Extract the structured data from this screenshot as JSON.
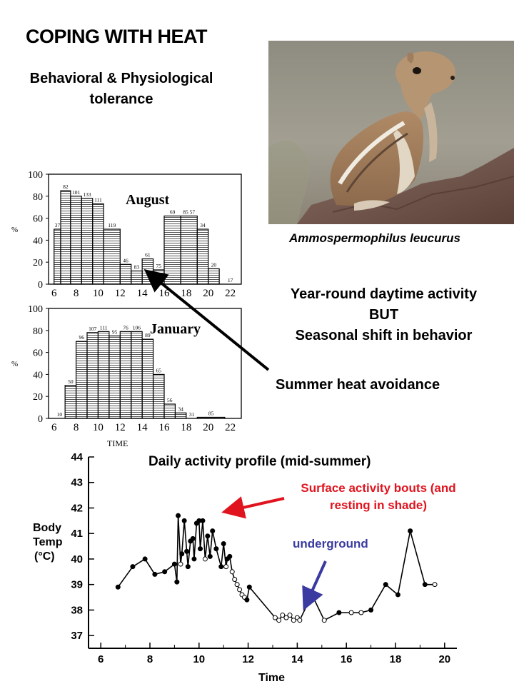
{
  "title": "COPING WITH HEAT",
  "subtitle": "Behavioral & Physiological tolerance",
  "species": "Ammospermophilus leucurus",
  "notes": {
    "line1": "Year-round daytime activity",
    "line2": "BUT",
    "line3": "Seasonal shift in behavior",
    "avoidance": "Summer heat avoidance"
  },
  "colors": {
    "red_arrow": "#e0141e",
    "blue_arrow": "#3a3aa0",
    "hatch": "#555555"
  },
  "chart_data": [
    {
      "type": "bar",
      "title": "August",
      "ylabel": "%",
      "ylim": [
        0,
        100
      ],
      "yticks": [
        "0",
        "20",
        "40",
        "60",
        "80",
        "100"
      ],
      "xticks": [
        "6",
        "8",
        "10",
        "12",
        "14",
        "16",
        "18",
        "20",
        "22"
      ],
      "bins": [
        {
          "x0": 6.0,
          "x1": 6.6,
          "value": 50,
          "label": "37"
        },
        {
          "x0": 6.6,
          "x1": 7.5,
          "value": 85,
          "label": "82"
        },
        {
          "x0": 7.5,
          "x1": 8.5,
          "value": 80,
          "label": "101"
        },
        {
          "x0": 8.5,
          "x1": 9.5,
          "value": 78,
          "label": "133"
        },
        {
          "x0": 9.5,
          "x1": 10.5,
          "value": 73,
          "label": "111"
        },
        {
          "x0": 10.5,
          "x1": 12.0,
          "value": 50,
          "label": "119"
        },
        {
          "x0": 12.0,
          "x1": 13.0,
          "value": 18,
          "label": "46"
        },
        {
          "x0": 13.0,
          "x1": 14.0,
          "value": 12,
          "label": "83"
        },
        {
          "x0": 14.0,
          "x1": 15.0,
          "value": 23,
          "label": "61"
        },
        {
          "x0": 15.0,
          "x1": 16.0,
          "value": 13,
          "label": "75"
        },
        {
          "x0": 16.0,
          "x1": 17.5,
          "value": 62,
          "label": "69"
        },
        {
          "x0": 17.5,
          "x1": 19.0,
          "value": 62,
          "label": "85 57"
        },
        {
          "x0": 19.0,
          "x1": 20.0,
          "value": 50,
          "label": "34"
        },
        {
          "x0": 20.0,
          "x1": 21.0,
          "value": 14,
          "label": "20"
        },
        {
          "x0": 21.0,
          "x1": 23.0,
          "value": 0,
          "label": "17"
        }
      ]
    },
    {
      "type": "bar",
      "title": "January",
      "ylabel": "%",
      "xlabel": "TIME",
      "ylim": [
        0,
        100
      ],
      "yticks": [
        "0",
        "20",
        "40",
        "60",
        "80",
        "100"
      ],
      "xticks": [
        "6",
        "8",
        "10",
        "12",
        "14",
        "16",
        "18",
        "20",
        "22"
      ],
      "bins": [
        {
          "x0": 6.0,
          "x1": 7.0,
          "value": 0,
          "label": "10"
        },
        {
          "x0": 7.0,
          "x1": 8.0,
          "value": 30,
          "label": "50"
        },
        {
          "x0": 8.0,
          "x1": 9.0,
          "value": 70,
          "label": "96"
        },
        {
          "x0": 9.0,
          "x1": 10.0,
          "value": 78,
          "label": "107"
        },
        {
          "x0": 10.0,
          "x1": 11.0,
          "value": 79,
          "label": "111"
        },
        {
          "x0": 11.0,
          "x1": 12.0,
          "value": 75,
          "label": "95"
        },
        {
          "x0": 12.0,
          "x1": 13.0,
          "value": 79,
          "label": "76"
        },
        {
          "x0": 13.0,
          "x1": 14.0,
          "value": 79,
          "label": "106"
        },
        {
          "x0": 14.0,
          "x1": 15.0,
          "value": 72,
          "label": "89"
        },
        {
          "x0": 15.0,
          "x1": 16.0,
          "value": 40,
          "label": "65"
        },
        {
          "x0": 16.0,
          "x1": 17.0,
          "value": 13,
          "label": "56"
        },
        {
          "x0": 17.0,
          "x1": 18.0,
          "value": 5,
          "label": "34"
        },
        {
          "x0": 18.0,
          "x1": 19.0,
          "value": 0,
          "label": "31"
        },
        {
          "x0": 19.0,
          "x1": 21.5,
          "value": 1,
          "label": "85"
        }
      ]
    },
    {
      "type": "line",
      "title": "Daily activity profile (mid-summer)",
      "xlabel": "Time",
      "ylabel": "Body Temp (°C)",
      "xlim": [
        5.5,
        20.5
      ],
      "ylim": [
        36.5,
        44
      ],
      "xticks": [
        "6",
        "8",
        "10",
        "12",
        "14",
        "16",
        "18",
        "20"
      ],
      "yticks": [
        "37",
        "38",
        "39",
        "40",
        "41",
        "42",
        "43",
        "44"
      ],
      "annotations": {
        "surface": "Surface activity bouts (and resting in shade)",
        "underground": "underground"
      },
      "points": [
        [
          6.7,
          38.9,
          1
        ],
        [
          7.3,
          39.7,
          1
        ],
        [
          7.8,
          40.0,
          1
        ],
        [
          8.2,
          39.4,
          1
        ],
        [
          8.6,
          39.5,
          1
        ],
        [
          9.0,
          39.8,
          1
        ],
        [
          9.1,
          39.1,
          1
        ],
        [
          9.15,
          41.7,
          1
        ],
        [
          9.25,
          39.8,
          0
        ],
        [
          9.3,
          40.2,
          1
        ],
        [
          9.4,
          41.5,
          1
        ],
        [
          9.5,
          40.3,
          1
        ],
        [
          9.55,
          39.7,
          1
        ],
        [
          9.65,
          40.7,
          1
        ],
        [
          9.75,
          40.8,
          1
        ],
        [
          9.8,
          40.0,
          1
        ],
        [
          9.9,
          41.4,
          1
        ],
        [
          10.0,
          41.5,
          1
        ],
        [
          10.05,
          40.4,
          1
        ],
        [
          10.15,
          41.5,
          1
        ],
        [
          10.25,
          40.0,
          0
        ],
        [
          10.35,
          40.9,
          1
        ],
        [
          10.45,
          40.1,
          1
        ],
        [
          10.55,
          41.1,
          1
        ],
        [
          10.7,
          40.4,
          1
        ],
        [
          10.9,
          39.7,
          1
        ],
        [
          11.0,
          40.6,
          1
        ],
        [
          11.1,
          39.7,
          0
        ],
        [
          11.15,
          40.0,
          1
        ],
        [
          11.25,
          40.1,
          1
        ],
        [
          11.35,
          39.5,
          0
        ],
        [
          11.45,
          39.2,
          0
        ],
        [
          11.55,
          39.0,
          0
        ],
        [
          11.65,
          38.8,
          0
        ],
        [
          11.75,
          38.6,
          0
        ],
        [
          11.85,
          38.5,
          0
        ],
        [
          11.95,
          38.4,
          1
        ],
        [
          12.05,
          38.9,
          1
        ],
        [
          13.1,
          37.7,
          0
        ],
        [
          13.25,
          37.6,
          0
        ],
        [
          13.4,
          37.8,
          0
        ],
        [
          13.55,
          37.7,
          0
        ],
        [
          13.7,
          37.8,
          0
        ],
        [
          13.85,
          37.6,
          0
        ],
        [
          14.0,
          37.7,
          0
        ],
        [
          14.1,
          37.6,
          0
        ],
        [
          14.6,
          38.6,
          1
        ],
        [
          15.1,
          37.6,
          0
        ],
        [
          15.7,
          37.9,
          1
        ],
        [
          16.2,
          37.9,
          0
        ],
        [
          16.6,
          37.9,
          0
        ],
        [
          17.0,
          38.0,
          1
        ],
        [
          17.6,
          39.0,
          1
        ],
        [
          18.1,
          38.6,
          1
        ],
        [
          18.6,
          41.1,
          1
        ],
        [
          19.2,
          39.0,
          1
        ],
        [
          19.6,
          39.0,
          0
        ]
      ]
    }
  ]
}
